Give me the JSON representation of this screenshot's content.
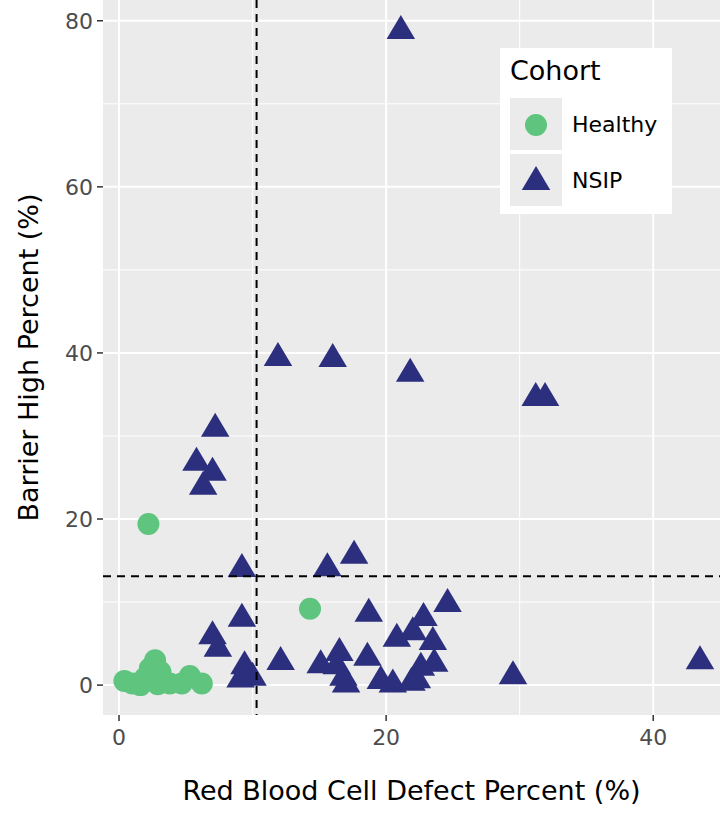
{
  "chart_data": {
    "type": "scatter",
    "x_label": "Red Blood Cell Defect Percent (%)",
    "y_label": "Barrier High Percent (%)",
    "legend_title": "Cohort",
    "legend": "top-right",
    "grid": true,
    "xlim": [
      -1.2,
      45
    ],
    "ylim": [
      -3.6,
      82.5
    ],
    "xticks": [
      0,
      20,
      40
    ],
    "yticks": [
      0,
      20,
      40,
      60,
      80
    ],
    "reference_lines": [
      {
        "axis": "x",
        "value": 10.3
      },
      {
        "axis": "y",
        "value": 13.1
      }
    ],
    "series": [
      {
        "name": "Healthy",
        "color": "#5ec47e",
        "marker": "circle",
        "x": [
          2.2,
          14.3,
          0.4,
          1.0,
          1.6,
          1.9,
          2.3,
          2.7,
          3.1,
          2.9,
          3.8,
          4.7,
          5.3,
          6.2
        ],
        "values": [
          19.4,
          9.2,
          0.5,
          0.2,
          0.0,
          0.8,
          2.0,
          3.0,
          1.6,
          0.1,
          0.2,
          0.2,
          1.1,
          0.2
        ]
      },
      {
        "name": "NSIP",
        "color": "#2b2f7e",
        "marker": "triangle",
        "x": [
          21.1,
          16.0,
          21.8,
          11.9,
          31.2,
          31.9,
          7.2,
          5.8,
          7.0,
          6.3,
          17.6,
          15.6,
          9.2,
          24.6,
          18.7,
          16.5,
          7.0,
          7.4,
          9.2,
          9.4,
          10.0,
          9.1,
          12.1,
          15.1,
          16.3,
          16.8,
          17.0,
          18.6,
          20.8,
          22.0,
          22.8,
          23.5,
          22.6,
          20.5,
          21.9,
          22.3,
          23.6,
          29.5,
          43.5,
          19.6
        ],
        "values": [
          78.9,
          39.4,
          37.6,
          39.5,
          34.7,
          34.7,
          31.0,
          26.9,
          25.7,
          24.0,
          15.7,
          14.2,
          14.1,
          9.9,
          8.7,
          4.0,
          6.0,
          4.5,
          8.1,
          2.4,
          1.0,
          0.8,
          2.9,
          2.5,
          2.4,
          1.0,
          0.2,
          3.4,
          5.7,
          6.5,
          8.2,
          5.3,
          2.2,
          0.2,
          0.4,
          0.7,
          2.7,
          1.2,
          3.0,
          0.6
        ]
      }
    ]
  }
}
